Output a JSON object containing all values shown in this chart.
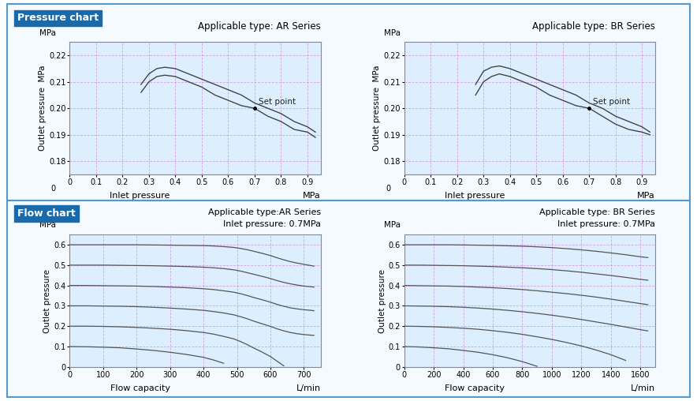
{
  "outer_bg": "#ffffff",
  "panel_bg": "#f5faff",
  "grid_bg": "#ddeeff",
  "outer_border": "#5599cc",
  "panel_border": "#5599cc",
  "title_bg": "#1a6aaa",
  "title_text_color": "white",
  "pressure_chart_title": "Pressure chart",
  "flow_chart_title": "Flow chart",
  "ar_pressure_title": "Applicable type: AR Series",
  "br_pressure_title": "Applicable type: BR Series",
  "ar_flow_title1": "Applicable type:AR Series",
  "ar_flow_title2": "Inlet pressure: 0.7MPa",
  "br_flow_title1": "Applicable type: BR Series",
  "br_flow_title2": "Inlet pressure: 0.7MPa",
  "pressure_xlabel": "Inlet pressure",
  "pressure_xunit": "MPa",
  "pressure_ylabel": "Outlet pressure  MPa",
  "flow_xlabel": "Flow capacity",
  "flow_xunit": "L/min",
  "flow_ylabel": "Outlet pressure",
  "flow_yunit": "MPa",
  "pressure_xlim": [
    0,
    0.95
  ],
  "pressure_ylim": [
    0.175,
    0.225
  ],
  "pressure_yticks": [
    0.18,
    0.19,
    0.2,
    0.21,
    0.22
  ],
  "pressure_xticks": [
    0,
    0.1,
    0.2,
    0.3,
    0.4,
    0.5,
    0.6,
    0.7,
    0.8,
    0.9
  ],
  "ar_flow_xlim": [
    0,
    750
  ],
  "ar_flow_xticks": [
    0,
    100,
    200,
    300,
    400,
    500,
    600,
    700
  ],
  "br_flow_xlim": [
    0,
    1700
  ],
  "br_flow_xticks": [
    0,
    200,
    400,
    600,
    800,
    1000,
    1200,
    1400,
    1600
  ],
  "flow_ylim": [
    0,
    0.65
  ],
  "flow_yticks": [
    0,
    0.1,
    0.2,
    0.3,
    0.4,
    0.5,
    0.6
  ],
  "line_color": "#444444",
  "dashed_color": "#cc66cc",
  "curve_color": "#555555",
  "set_point_text": "Set point",
  "set_point_color": "#222222"
}
